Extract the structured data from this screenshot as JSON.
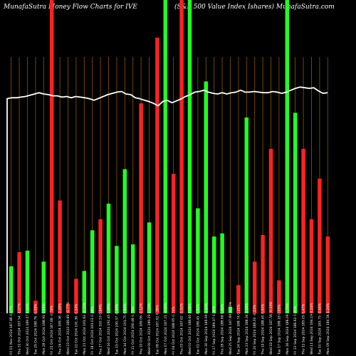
{
  "chart_data": {
    "type": "bar",
    "title_left": "MunafaSutra  Money Flow  Charts for IVE",
    "title_right": "(S&P 500  Value  Index Ishares) MunafaSutra.com",
    "grid": "vertical",
    "ylim": [
      0,
      100
    ],
    "bars": [
      {
        "label": "Fri 01 Nov 2024 187.86 0.17%",
        "value": 15,
        "color": "green"
      },
      {
        "label": "Thu 31 Oct 2024 187.54 -1.07%",
        "value": 19.5,
        "color": "red"
      },
      {
        "label": "Wed 30 Oct 2024 189.57 0.43%",
        "value": 20,
        "color": "green"
      },
      {
        "label": "Tue 29 Oct 2024 188.76 -0.08%",
        "value": 4,
        "color": "red"
      },
      {
        "label": "Mon 28 Oct 2024 188.91 0.55%",
        "value": 16.5,
        "color": "green"
      },
      {
        "label": "Fri 25 Oct 2024 187.88 -0.78%",
        "value": 100,
        "color": "red"
      },
      {
        "label": "Thu 24 Oct 2024 189.36 -0.28%",
        "value": 36,
        "color": "red"
      },
      {
        "label": "Wed 23 Oct 2024 189.89 -0.77%",
        "value": 3,
        "color": "red"
      },
      {
        "label": "Tue 22 Oct 2024 191.36 -0.14%",
        "value": 11,
        "color": "red"
      },
      {
        "label": "Mon 21 Oct 2024 191.63 -0.72%",
        "value": 13.5,
        "color": "green"
      },
      {
        "label": "Fri 18 Oct 2024 193.03 0.26%",
        "value": 26.5,
        "color": "green"
      },
      {
        "label": "Thu 17 Oct 2024 192.53 0.04%",
        "value": 30,
        "color": "red"
      },
      {
        "label": "Wed 16 Oct 2024 192.45 0.99%",
        "value": 35,
        "color": "green"
      },
      {
        "label": "Tue 15 Oct 2024 190.57 -0.59%",
        "value": 21.5,
        "color": "green"
      },
      {
        "label": "Mon 14 Oct 2024 191.70 0.64%",
        "value": 46,
        "color": "green"
      },
      {
        "label": "Fri 11 Oct 2024 190.48 0.75%",
        "value": 22,
        "color": "green"
      },
      {
        "label": "Thu 10 Oct 2024 189.06 -0.12%",
        "value": 67,
        "color": "red"
      },
      {
        "label": "Wed 09 Oct 2024 189.29 0.73%",
        "value": 29,
        "color": "green"
      },
      {
        "label": "Tue 08 Oct 2024 187.92 0.38%",
        "value": 88,
        "color": "red"
      },
      {
        "label": "Mon 07 Oct 2024 187.21 -0.92%",
        "value": 100,
        "color": "green"
      },
      {
        "label": "Fri 04 Oct 2024 188.95 0.71%",
        "value": 44.5,
        "color": "red"
      },
      {
        "label": "Thu 03 Oct 2024 187.62 -0.52%",
        "value": 100,
        "color": "red"
      },
      {
        "label": "Wed 02 Oct 2024 188.60 0.08%",
        "value": 100,
        "color": "green"
      },
      {
        "label": "Tue 01 Oct 2024 188.45 -0.81%",
        "value": 33.5,
        "color": "green"
      },
      {
        "label": "Mon 30 Sep 2024 189.99 0.33%",
        "value": 74,
        "color": "green"
      },
      {
        "label": "Fri 27 Sep 2024 189.37 0.36%",
        "value": 24.5,
        "color": "green"
      },
      {
        "label": "Thu 26 Sep 2024 188.68 0.42%",
        "value": 25.5,
        "color": "green"
      },
      {
        "label": "Wed 25 Sep 2024 187.89 -0.45%",
        "value": 2,
        "color": "green"
      },
      {
        "label": "Tue 24 Sep 2024 188.74 0.21%",
        "value": 9,
        "color": "red"
      },
      {
        "label": "Mon 23 Sep 2024 188.34 0.18%",
        "value": 62.5,
        "color": "green"
      },
      {
        "label": "Fri 20 Sep 2024 188.00 -0.21%",
        "value": 16.5,
        "color": "red"
      },
      {
        "label": "Thu 19 Sep 2024 188.40 0.45%",
        "value": 25,
        "color": "red"
      },
      {
        "label": "Wed 18 Sep 2024 187.56 -0.33%",
        "value": 52.5,
        "color": "red"
      },
      {
        "label": "Tue 17 Sep 2024 188.18 0.05%",
        "value": 10.5,
        "color": "red"
      },
      {
        "label": "Mon 16 Sep 2024 188.09 0.79%",
        "value": 100,
        "color": "green"
      },
      {
        "label": "Fri 13 Sep 2024 186.62 0.85%",
        "value": 64,
        "color": "green"
      },
      {
        "label": "Thu 12 Sep 2024 185.05 0.47%",
        "value": 52.5,
        "color": "red"
      },
      {
        "label": "Wed 11 Sep 2024 184.19 0.24%",
        "value": 30,
        "color": "red"
      },
      {
        "label": "Tue 10 Sep 2024 183.75 -0.44%",
        "value": 43,
        "color": "red"
      },
      {
        "label": "Mon 09 Sep 2024 184.56 1.24%",
        "value": 24.5,
        "color": "red"
      }
    ],
    "price_line": [
      68.5,
      68.8,
      68.8,
      69.0,
      69.2,
      69.6,
      70.0,
      70.4,
      70.0,
      69.8,
      69.4,
      69.4,
      69.0,
      69.2,
      68.8,
      69.2,
      69.0,
      68.8,
      68.5,
      68.0,
      68.6,
      69.2,
      69.8,
      70.2,
      70.6,
      70.8,
      70.0,
      69.8,
      68.8,
      68.5,
      68.0,
      67.6,
      67.0,
      66.2,
      67.6,
      68.0,
      67.2,
      67.8,
      68.4,
      69.2,
      69.8,
      70.6,
      70.8,
      71.2,
      70.6,
      70.2,
      70.0,
      70.4,
      70.0,
      70.4,
      70.6,
      71.2,
      70.6,
      70.6,
      70.8,
      70.6,
      70.4,
      70.4,
      70.8,
      70.6,
      70.2,
      70.6,
      71.2,
      71.8,
      72.2,
      72.0,
      71.8,
      72.0,
      71.0,
      70.2,
      70.4
    ]
  },
  "colors": {
    "background": "#000000",
    "grid": "#8a5a00",
    "bar_green": "#22ff22",
    "bar_red": "#ff2222",
    "price_line": "#ffffff",
    "text": "#ffffff"
  }
}
